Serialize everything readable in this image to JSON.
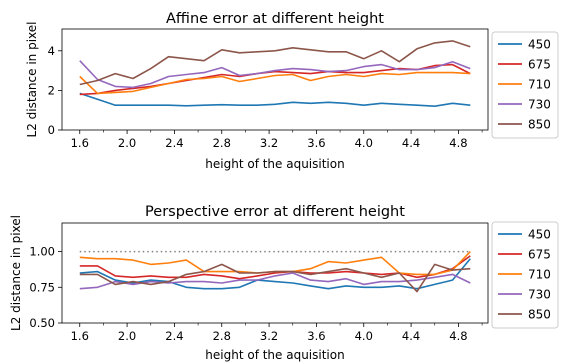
{
  "chart_data": [
    {
      "type": "line",
      "title": "Affine error at different height",
      "xlabel": "height of the aquisition",
      "ylabel": "L2 distance in pixel",
      "xlim": [
        1.45,
        5.05
      ],
      "ylim": [
        0,
        5.1
      ],
      "xticks": [
        1.6,
        2.0,
        2.4,
        2.8,
        3.2,
        3.6,
        4.0,
        4.4,
        4.8
      ],
      "xtick_labels": [
        "1.6",
        "2.0",
        "2.4",
        "2.8",
        "3.2",
        "3.6",
        "4.0",
        "4.4",
        "4.8"
      ],
      "yticks": [
        0,
        2,
        4
      ],
      "ytick_labels": [
        "0",
        "2",
        "4"
      ],
      "x": [
        1.6,
        1.75,
        1.9,
        2.05,
        2.2,
        2.35,
        2.5,
        2.65,
        2.8,
        2.95,
        3.1,
        3.25,
        3.4,
        3.55,
        3.7,
        3.85,
        4.0,
        4.15,
        4.3,
        4.45,
        4.6,
        4.75,
        4.9
      ],
      "grid": false,
      "legend": "outside-right",
      "series": [
        {
          "name": "450",
          "color": "#1f77b4",
          "values": [
            1.85,
            1.55,
            1.25,
            1.25,
            1.25,
            1.25,
            1.22,
            1.25,
            1.28,
            1.25,
            1.25,
            1.3,
            1.4,
            1.35,
            1.4,
            1.35,
            1.25,
            1.35,
            1.3,
            1.25,
            1.2,
            1.35,
            1.25
          ]
        },
        {
          "name": "675",
          "color": "#d62728",
          "values": [
            1.8,
            1.85,
            2.0,
            2.1,
            2.2,
            2.35,
            2.5,
            2.65,
            2.8,
            2.7,
            2.85,
            2.95,
            2.9,
            2.85,
            2.95,
            2.9,
            2.9,
            3.0,
            3.1,
            3.05,
            3.25,
            3.3,
            2.85
          ]
        },
        {
          "name": "710",
          "color": "#ff7f0e",
          "values": [
            2.7,
            1.85,
            1.9,
            1.95,
            2.15,
            2.35,
            2.55,
            2.6,
            2.7,
            2.45,
            2.6,
            2.75,
            2.8,
            2.5,
            2.7,
            2.8,
            2.7,
            2.85,
            2.8,
            2.9,
            2.9,
            2.9,
            2.85
          ]
        },
        {
          "name": "730",
          "color": "#9467bd",
          "values": [
            3.5,
            2.55,
            2.2,
            2.15,
            2.35,
            2.7,
            2.8,
            2.9,
            3.15,
            2.75,
            2.85,
            3.0,
            3.1,
            3.05,
            2.95,
            3.0,
            3.2,
            3.3,
            3.05,
            3.05,
            3.15,
            3.45,
            3.1
          ]
        },
        {
          "name": "850",
          "color": "#8c564b",
          "values": [
            2.3,
            2.5,
            2.85,
            2.6,
            3.1,
            3.7,
            3.6,
            3.5,
            4.05,
            3.9,
            3.95,
            4.0,
            4.15,
            4.05,
            3.95,
            3.95,
            3.6,
            4.0,
            3.45,
            4.1,
            4.4,
            4.5,
            4.2
          ]
        }
      ]
    },
    {
      "type": "line",
      "title": "Perspective error at different height",
      "xlabel": "height of the aquisition",
      "ylabel": "L2 distance in pixel",
      "xlim": [
        1.45,
        5.05
      ],
      "ylim": [
        0.5,
        1.2
      ],
      "xticks": [
        1.6,
        2.0,
        2.4,
        2.8,
        3.2,
        3.6,
        4.0,
        4.4,
        4.8
      ],
      "xtick_labels": [
        "1.6",
        "2.0",
        "2.4",
        "2.8",
        "3.2",
        "3.6",
        "4.0",
        "4.4",
        "4.8"
      ],
      "yticks": [
        0.5,
        0.75,
        1.0
      ],
      "ytick_labels": [
        "0.50",
        "0.75",
        "1.00"
      ],
      "x": [
        1.6,
        1.75,
        1.9,
        2.05,
        2.2,
        2.35,
        2.5,
        2.65,
        2.8,
        2.95,
        3.1,
        3.25,
        3.4,
        3.55,
        3.7,
        3.85,
        4.0,
        4.15,
        4.3,
        4.45,
        4.6,
        4.75,
        4.9
      ],
      "reference_line": {
        "y": 1.0,
        "style": "dotted",
        "color": "#808080"
      },
      "grid": false,
      "legend": "outside-right",
      "series": [
        {
          "name": "450",
          "color": "#1f77b4",
          "values": [
            0.85,
            0.86,
            0.8,
            0.78,
            0.8,
            0.79,
            0.75,
            0.74,
            0.74,
            0.75,
            0.8,
            0.79,
            0.78,
            0.76,
            0.74,
            0.76,
            0.75,
            0.75,
            0.76,
            0.74,
            0.77,
            0.8,
            0.95
          ]
        },
        {
          "name": "675",
          "color": "#d62728",
          "values": [
            0.9,
            0.9,
            0.83,
            0.82,
            0.83,
            0.82,
            0.82,
            0.84,
            0.83,
            0.81,
            0.83,
            0.85,
            0.86,
            0.85,
            0.85,
            0.86,
            0.85,
            0.84,
            0.85,
            0.82,
            0.84,
            0.88,
            0.97
          ]
        },
        {
          "name": "710",
          "color": "#ff7f0e",
          "values": [
            0.96,
            0.95,
            0.95,
            0.94,
            0.91,
            0.92,
            0.94,
            0.86,
            0.86,
            0.86,
            0.85,
            0.86,
            0.86,
            0.88,
            0.93,
            0.92,
            0.94,
            0.96,
            0.85,
            0.84,
            0.84,
            0.87,
            1.0
          ]
        },
        {
          "name": "730",
          "color": "#9467bd",
          "values": [
            0.74,
            0.75,
            0.79,
            0.77,
            0.79,
            0.78,
            0.79,
            0.79,
            0.78,
            0.8,
            0.8,
            0.83,
            0.85,
            0.8,
            0.79,
            0.81,
            0.77,
            0.79,
            0.79,
            0.8,
            0.82,
            0.84,
            0.78
          ]
        },
        {
          "name": "850",
          "color": "#8c564b",
          "values": [
            0.84,
            0.84,
            0.77,
            0.79,
            0.77,
            0.79,
            0.84,
            0.86,
            0.91,
            0.85,
            0.85,
            0.86,
            0.86,
            0.84,
            0.86,
            0.88,
            0.85,
            0.82,
            0.85,
            0.72,
            0.91,
            0.87,
            0.88
          ]
        }
      ]
    }
  ]
}
